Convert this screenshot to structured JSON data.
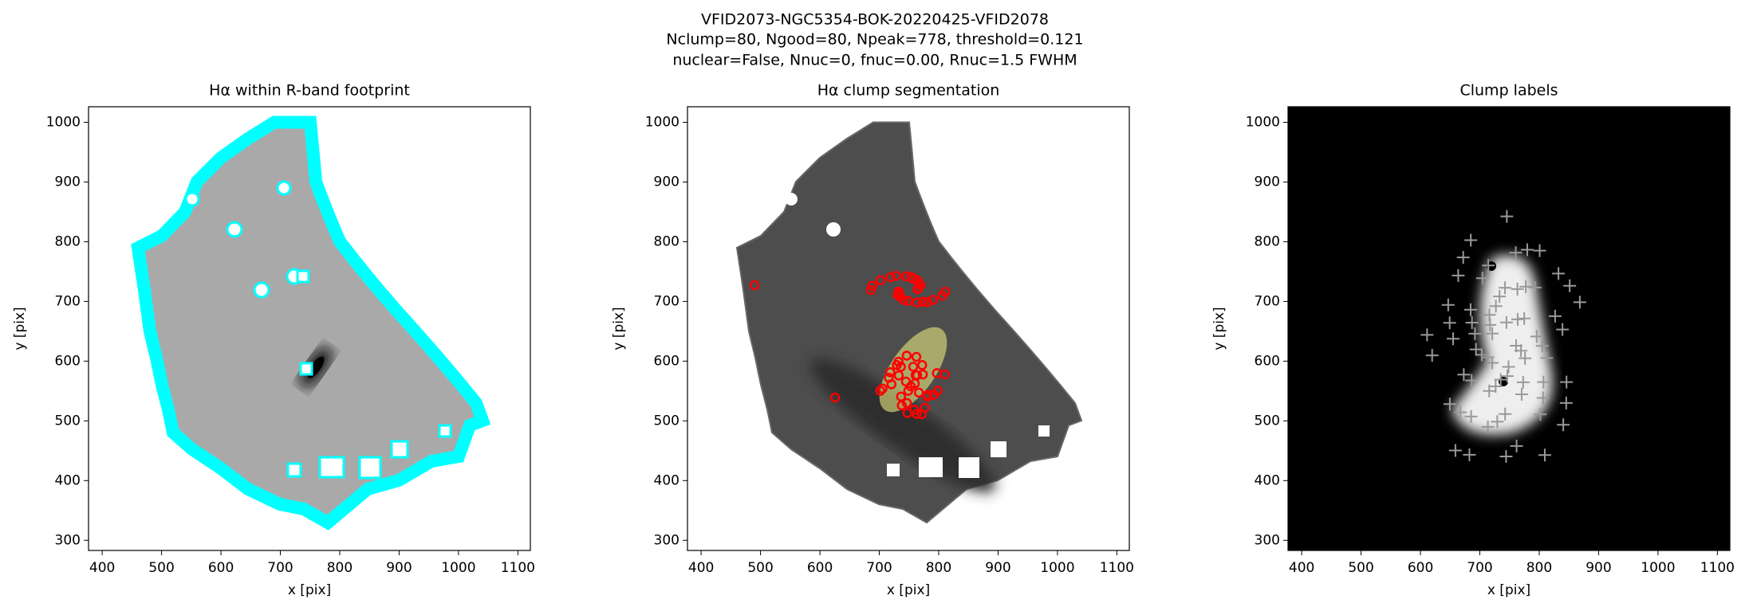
{
  "figure_title": [
    "VFID2073-NGC5354-BOK-20220425-VFID2078",
    "Nclump=80, Ngood=80, Npeak=778, threshold=0.121",
    "nuclear=False, Nnuc=0, fnuc=0.00, Rnuc=1.5 FWHM"
  ],
  "chart_data": [
    {
      "type": "image",
      "title": "Hα within R-band footprint",
      "xlabel": "x [pix]",
      "ylabel": "y [pix]",
      "xlim": [
        377,
        1121
      ],
      "ylim": [
        283,
        1026
      ],
      "xticks": [
        400,
        500,
        600,
        700,
        800,
        900,
        1000,
        1100
      ],
      "yticks": [
        300,
        400,
        500,
        600,
        700,
        800,
        900,
        1000
      ]
    },
    {
      "type": "image",
      "title": "Hα clump segmentation",
      "xlabel": "x [pix]",
      "ylabel": "y [pix]",
      "xlim": [
        377,
        1121
      ],
      "ylim": [
        283,
        1026
      ],
      "xticks": [
        400,
        500,
        600,
        700,
        800,
        900,
        1000,
        1100
      ],
      "yticks": [
        300,
        400,
        500,
        600,
        700,
        800,
        900,
        1000
      ]
    },
    {
      "type": "image",
      "title": "Clump labels",
      "xlabel": "x [pix]",
      "ylabel": "y [pix]",
      "xlim": [
        377,
        1121
      ],
      "ylim": [
        283,
        1026
      ],
      "xticks": [
        400,
        500,
        600,
        700,
        800,
        900,
        1000,
        1100
      ],
      "yticks": [
        300,
        400,
        500,
        600,
        700,
        800,
        900,
        1000
      ]
    }
  ]
}
